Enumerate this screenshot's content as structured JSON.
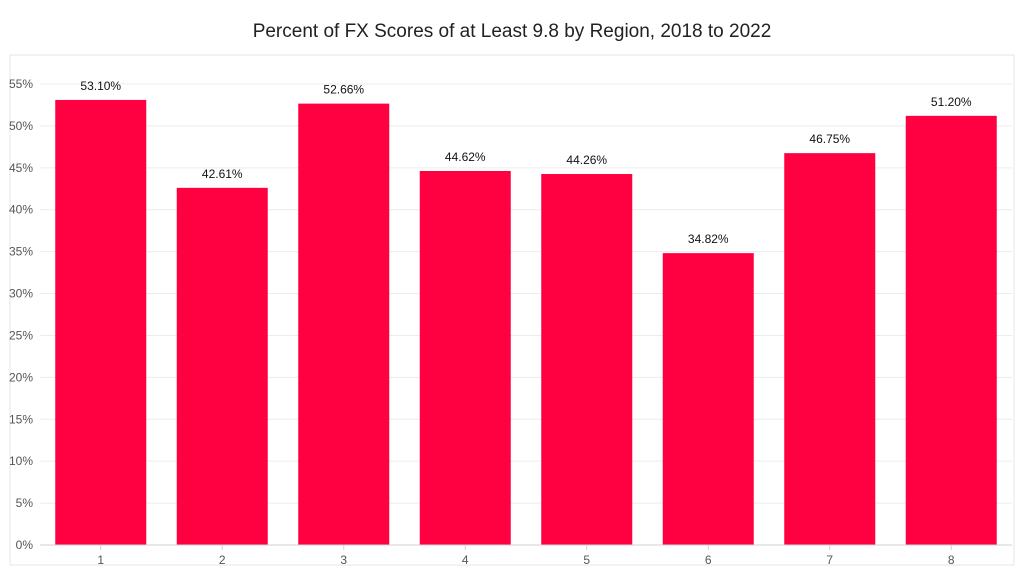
{
  "chart_data": {
    "type": "bar",
    "title": "Percent of FX Scores of at Least 9.8 by Region, 2018 to 2022",
    "xlabel": "",
    "ylabel": "",
    "categories": [
      "1",
      "2",
      "3",
      "4",
      "5",
      "6",
      "7",
      "8"
    ],
    "values": [
      53.1,
      42.61,
      52.66,
      44.62,
      44.26,
      34.82,
      46.75,
      51.2
    ],
    "data_labels": [
      "53.10%",
      "42.61%",
      "52.66%",
      "44.62%",
      "44.26%",
      "34.82%",
      "46.75%",
      "51.20%"
    ],
    "ylim": [
      0,
      55
    ],
    "yticks": [
      0,
      5,
      10,
      15,
      20,
      25,
      30,
      35,
      40,
      45,
      50,
      55
    ],
    "ytick_labels": [
      "0%",
      "5%",
      "10%",
      "15%",
      "20%",
      "25%",
      "30%",
      "35%",
      "40%",
      "45%",
      "50%",
      "55%"
    ],
    "grid": true,
    "legend": "none",
    "colors": {
      "bar": "#ff0040",
      "grid": "#ececec",
      "axis": "#d0d0d0"
    }
  }
}
